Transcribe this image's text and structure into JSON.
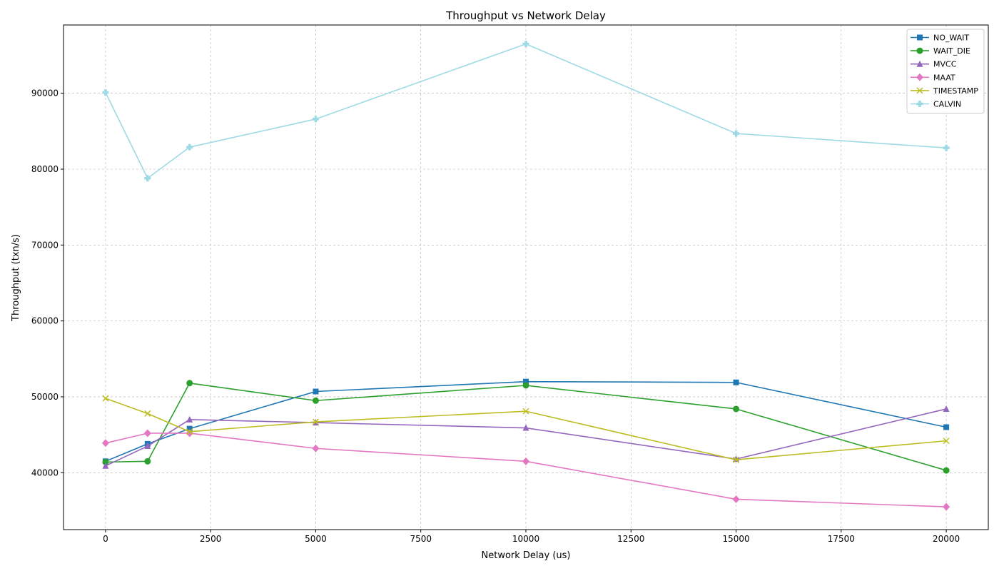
{
  "chart_data": {
    "type": "line",
    "title": "Throughput vs Network Delay",
    "xlabel": "Network Delay (us)",
    "ylabel": "Throughput (txn/s)",
    "x": [
      0,
      1000,
      2000,
      5000,
      10000,
      15000,
      20000
    ],
    "xlim": [
      -1000,
      21000
    ],
    "ylim": [
      32500,
      99000
    ],
    "xticks": [
      0,
      2500,
      5000,
      7500,
      10000,
      12500,
      15000,
      17500,
      20000
    ],
    "yticks": [
      40000,
      50000,
      60000,
      70000,
      80000,
      90000
    ],
    "grid": true,
    "legend_position": "top-right",
    "series": [
      {
        "name": "NO_WAIT",
        "color": "#1f77b4",
        "marker": "square",
        "values": [
          41500,
          43800,
          45800,
          50700,
          52000,
          51900,
          46000
        ]
      },
      {
        "name": "WAIT_DIE",
        "color": "#2ca02c",
        "marker": "circle",
        "values": [
          41400,
          41500,
          51800,
          49500,
          51500,
          48400,
          40300
        ]
      },
      {
        "name": "MVCC",
        "color": "#9467bd",
        "marker": "triangle",
        "values": [
          40900,
          43500,
          47000,
          46600,
          45900,
          41800,
          48400
        ]
      },
      {
        "name": "MAAT",
        "color": "#e377c2",
        "marker": "diamond",
        "values": [
          43900,
          45200,
          45200,
          43200,
          41500,
          36500,
          35500
        ]
      },
      {
        "name": "TIMESTAMP",
        "color": "#bcbd22",
        "marker": "x",
        "values": [
          49800,
          47800,
          45400,
          46700,
          48100,
          41700,
          44200
        ]
      },
      {
        "name": "CALVIN",
        "color": "#9edae5",
        "marker": "plus",
        "values": [
          90100,
          78800,
          82900,
          86600,
          96500,
          84700,
          82800
        ]
      }
    ]
  }
}
